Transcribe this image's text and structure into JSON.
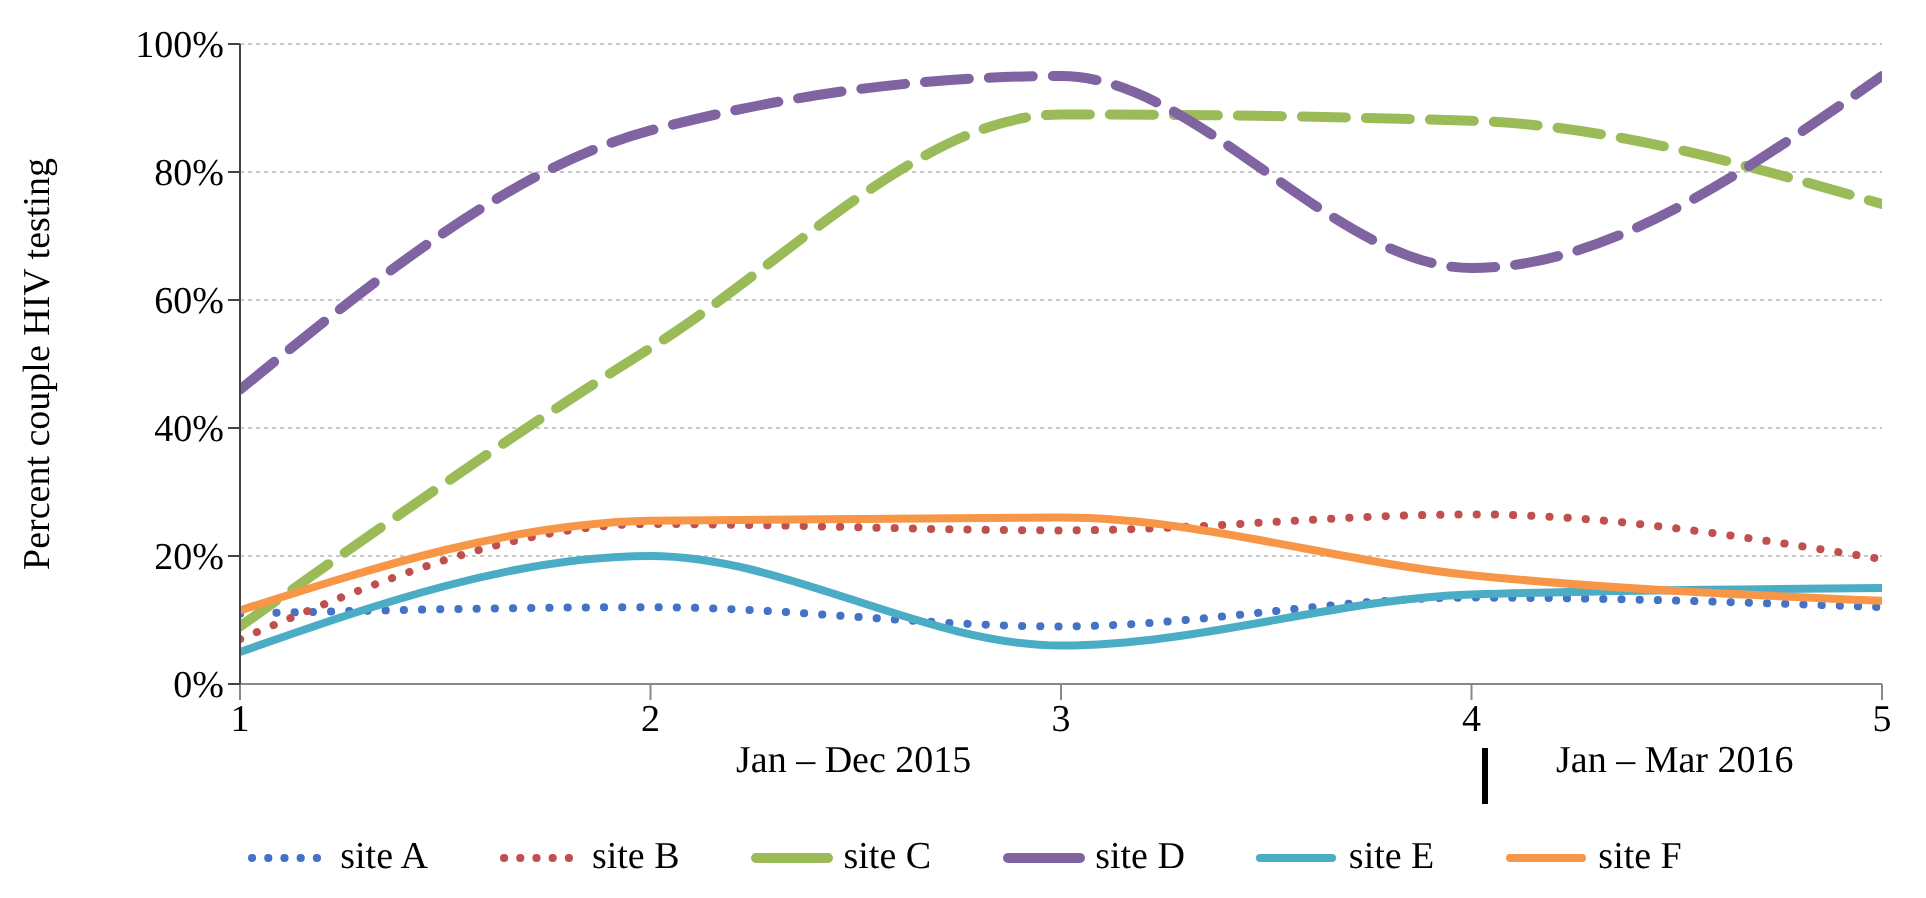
{
  "chart_data": {
    "type": "line",
    "ylabel": "Percent couple HIV testing",
    "x": [
      1,
      2,
      3,
      4,
      5
    ],
    "xlim": [
      1,
      5
    ],
    "xticks": [
      1,
      2,
      3,
      4,
      5
    ],
    "ylim": [
      0,
      100
    ],
    "yticks": [
      {
        "value": 0,
        "label": "0%"
      },
      {
        "value": 20,
        "label": "20%"
      },
      {
        "value": 40,
        "label": "40%"
      },
      {
        "value": 60,
        "label": "60%"
      },
      {
        "value": 80,
        "label": "80%"
      },
      {
        "value": 100,
        "label": "100%"
      }
    ],
    "grid": "y",
    "legend": "bottom",
    "marker": "none",
    "annotations": [
      "Jan – Dec 2015",
      "Jan – Mar 2016"
    ],
    "series": [
      {
        "name": "site A",
        "color": "#4472c4",
        "line_style": "dotted",
        "values": [
          11,
          12,
          9,
          13.5,
          12
        ]
      },
      {
        "name": "site B",
        "color": "#c0504d",
        "line_style": "dotted",
        "values": [
          7,
          25,
          24,
          26.5,
          19.5
        ]
      },
      {
        "name": "site C",
        "color": "#9bbb59",
        "line_style": "dashed",
        "values": [
          9,
          52.5,
          89,
          88,
          75
        ]
      },
      {
        "name": "site D",
        "color": "#8064a2",
        "line_style": "dashed",
        "values": [
          46,
          86.5,
          95,
          65,
          95
        ]
      },
      {
        "name": "site E",
        "color": "#4bacc6",
        "line_style": "solid",
        "values": [
          5,
          20,
          6,
          14,
          15
        ]
      },
      {
        "name": "site F",
        "color": "#f79646",
        "line_style": "solid",
        "values": [
          11.5,
          25.5,
          26,
          17,
          13
        ]
      }
    ]
  }
}
